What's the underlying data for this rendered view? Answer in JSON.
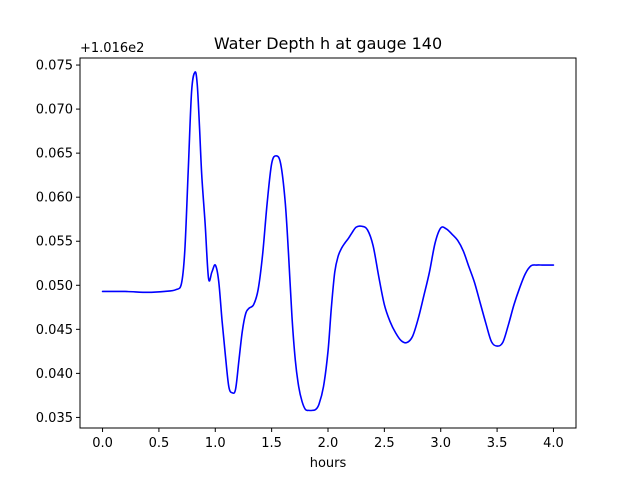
{
  "chart_data": {
    "type": "line",
    "title": "Water Depth h at gauge 140",
    "xlabel": "hours",
    "ylabel": "",
    "offset_text": "+1.016e2",
    "xlim": [
      -0.2,
      4.2
    ],
    "ylim": [
      0.0338,
      0.0758
    ],
    "x_ticks": [
      0.0,
      0.5,
      1.0,
      1.5,
      2.0,
      2.5,
      3.0,
      3.5,
      4.0
    ],
    "x_tick_labels": [
      "0.0",
      "0.5",
      "1.0",
      "1.5",
      "2.0",
      "2.5",
      "3.0",
      "3.5",
      "4.0"
    ],
    "y_ticks": [
      0.035,
      0.04,
      0.045,
      0.05,
      0.055,
      0.06,
      0.065,
      0.07,
      0.075
    ],
    "y_tick_labels": [
      "0.035",
      "0.040",
      "0.045",
      "0.050",
      "0.055",
      "0.060",
      "0.065",
      "0.070",
      "0.075"
    ],
    "grid": false,
    "color": "#0000ff",
    "series": [
      {
        "x": [
          0.0,
          0.2,
          0.4,
          0.55,
          0.65,
          0.7,
          0.73,
          0.76,
          0.79,
          0.82,
          0.84,
          0.86,
          0.88,
          0.91,
          0.94,
          0.97,
          1.0,
          1.03,
          1.06,
          1.09,
          1.12,
          1.15,
          1.18,
          1.21,
          1.24,
          1.27,
          1.3,
          1.34,
          1.38,
          1.42,
          1.46,
          1.5,
          1.54,
          1.58,
          1.62,
          1.65,
          1.68,
          1.71,
          1.74,
          1.77,
          1.8,
          1.83,
          1.86,
          1.89,
          1.92,
          1.96,
          2.0,
          2.03,
          2.06,
          2.09,
          2.12,
          2.15,
          2.18,
          2.21,
          2.25,
          2.3,
          2.35,
          2.4,
          2.45,
          2.5,
          2.55,
          2.6,
          2.65,
          2.7,
          2.75,
          2.8,
          2.85,
          2.9,
          2.95,
          3.0,
          3.05,
          3.1,
          3.15,
          3.2,
          3.25,
          3.3,
          3.35,
          3.4,
          3.45,
          3.5,
          3.55,
          3.6,
          3.65,
          3.7,
          3.75,
          3.8,
          3.85,
          3.9,
          3.95,
          4.0
        ],
        "values": [
          0.0493,
          0.0493,
          0.0492,
          0.0493,
          0.0495,
          0.0502,
          0.054,
          0.063,
          0.072,
          0.0742,
          0.0728,
          0.068,
          0.0625,
          0.057,
          0.0508,
          0.0515,
          0.0523,
          0.0505,
          0.046,
          0.042,
          0.0385,
          0.0378,
          0.0382,
          0.0415,
          0.0448,
          0.0468,
          0.0474,
          0.0478,
          0.0495,
          0.0535,
          0.0593,
          0.0638,
          0.0647,
          0.0638,
          0.0595,
          0.0535,
          0.0465,
          0.0415,
          0.0385,
          0.0368,
          0.0359,
          0.0358,
          0.0358,
          0.0359,
          0.0365,
          0.0385,
          0.0425,
          0.0475,
          0.0515,
          0.0533,
          0.0542,
          0.0548,
          0.0553,
          0.0559,
          0.0566,
          0.0567,
          0.0563,
          0.0545,
          0.051,
          0.0478,
          0.0459,
          0.0446,
          0.0437,
          0.0435,
          0.0442,
          0.0462,
          0.0488,
          0.0515,
          0.0548,
          0.0565,
          0.0564,
          0.0558,
          0.0551,
          0.0539,
          0.0521,
          0.0503,
          0.048,
          0.0457,
          0.0436,
          0.0431,
          0.0435,
          0.0455,
          0.0478,
          0.0497,
          0.0513,
          0.0522,
          0.0523,
          0.0523,
          0.0523,
          0.0523
        ]
      }
    ]
  }
}
